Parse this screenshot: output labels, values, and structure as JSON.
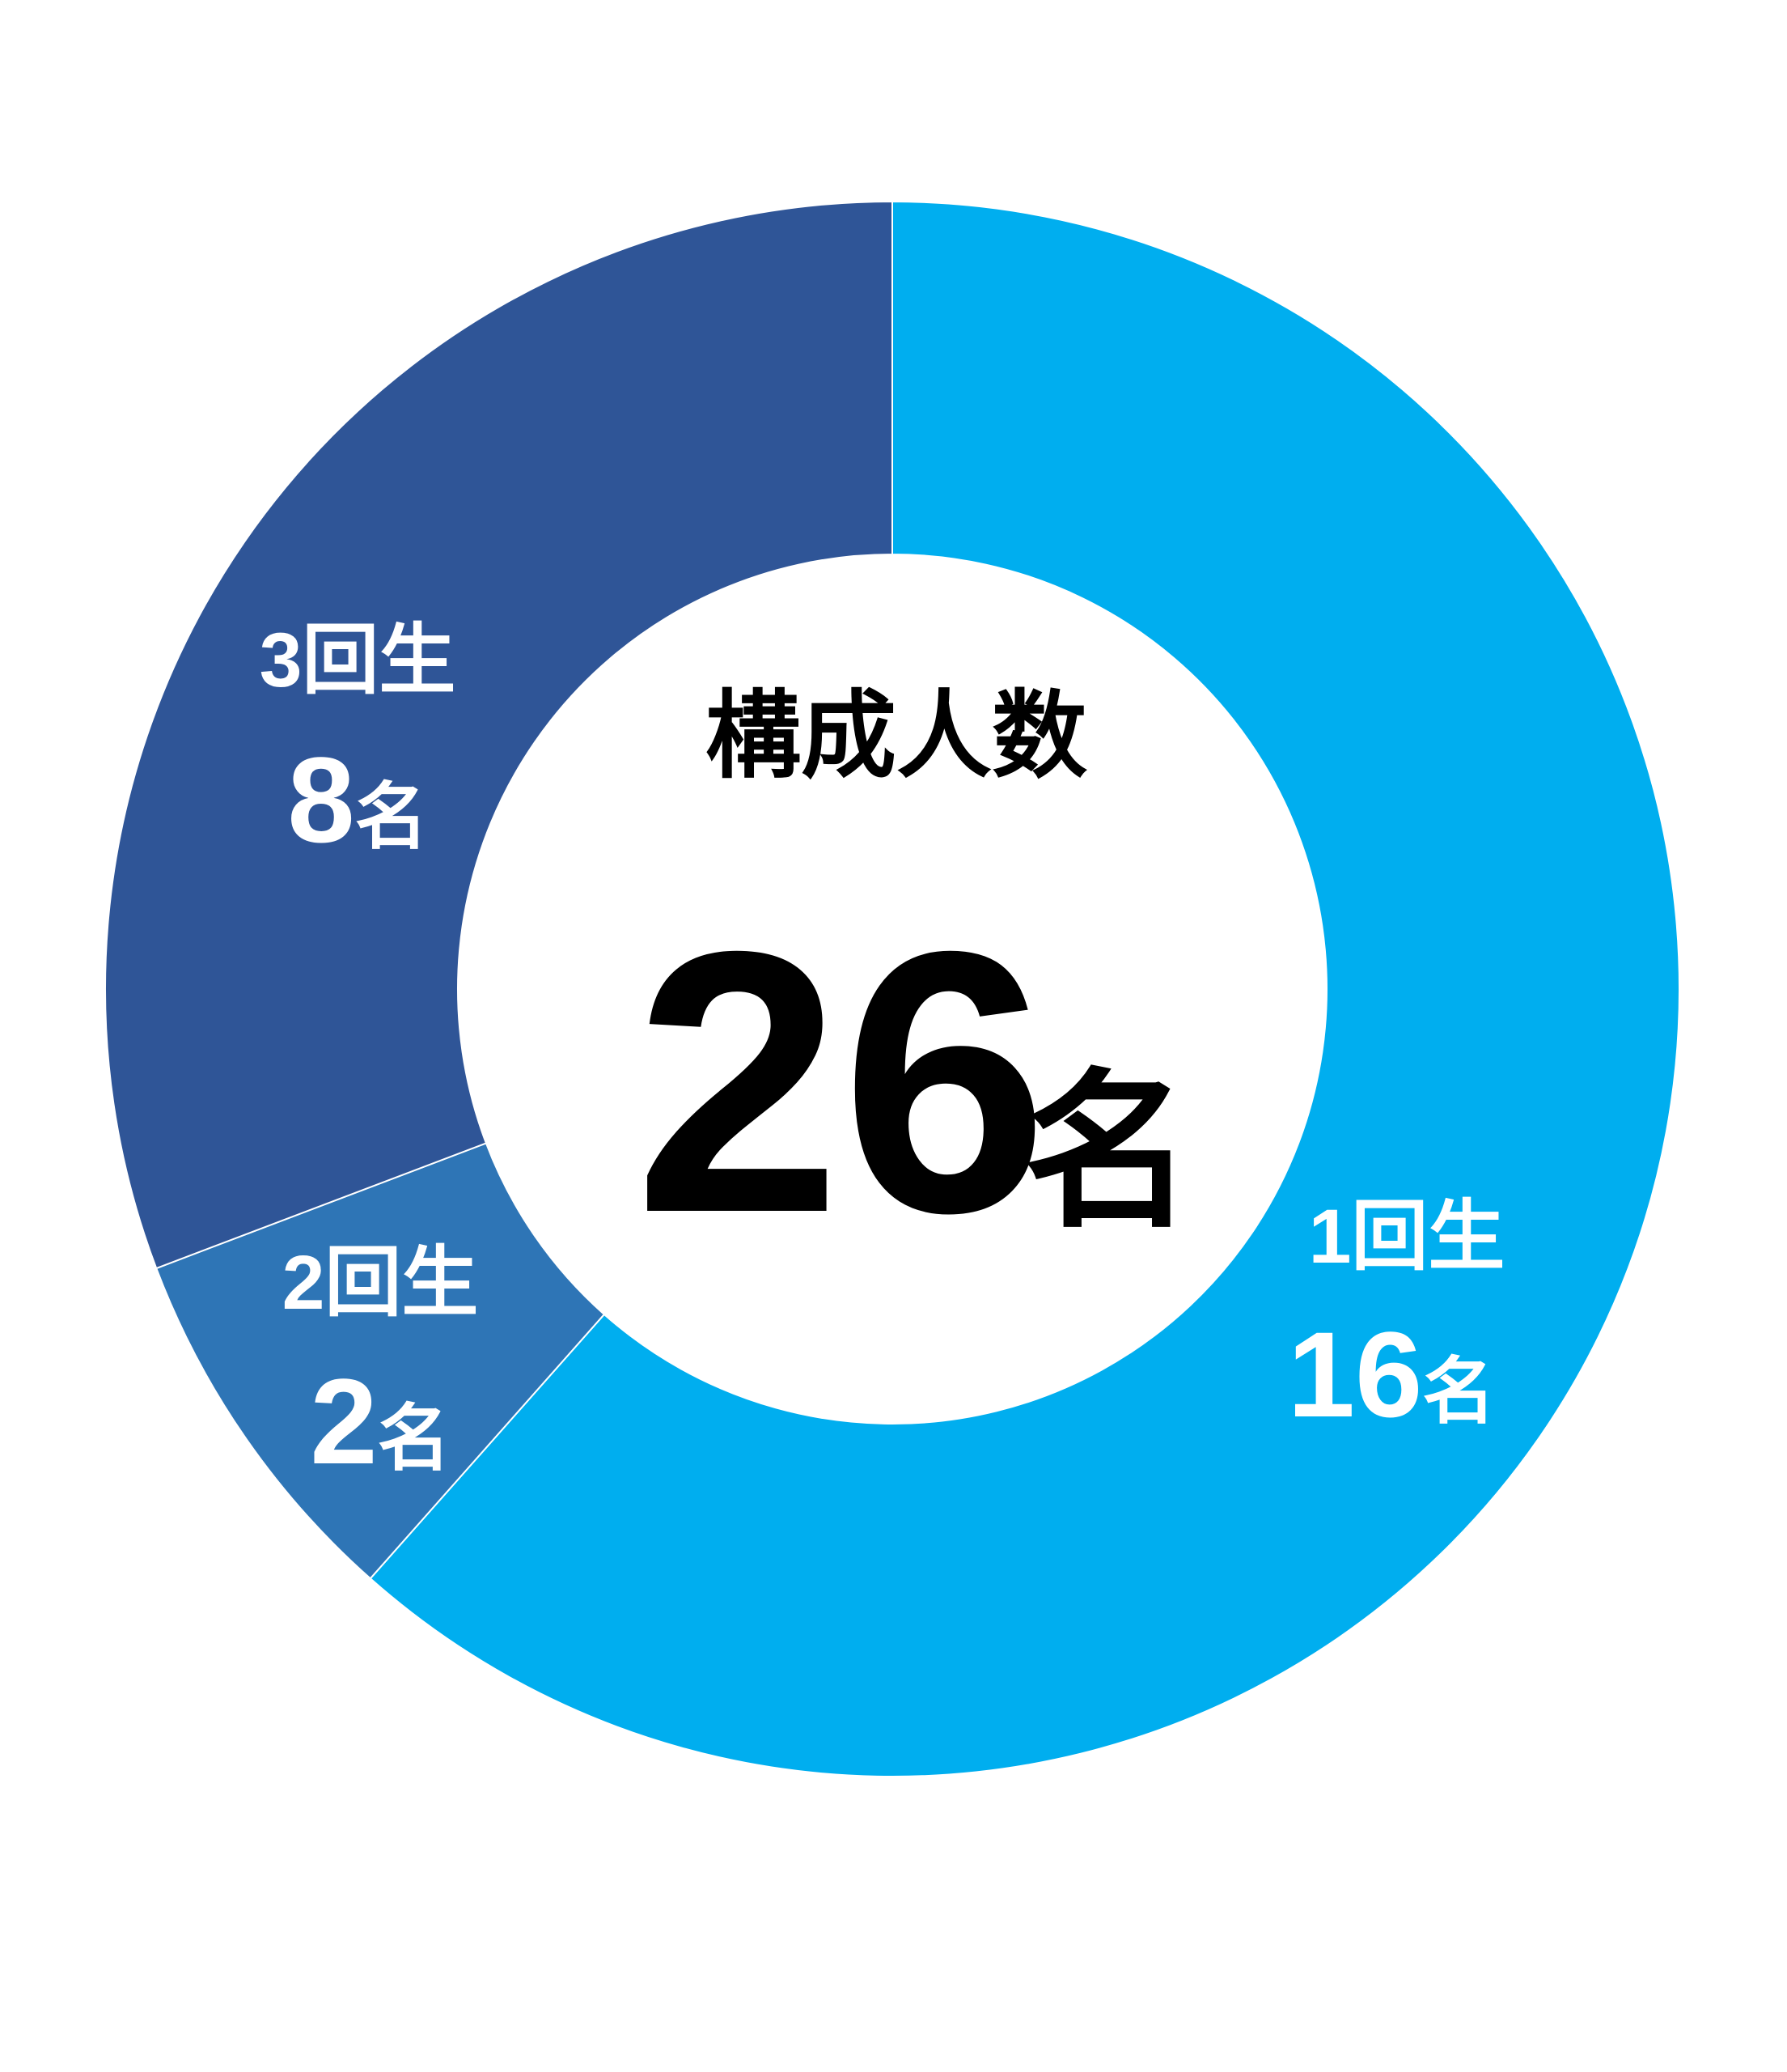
{
  "chart_data": {
    "type": "pie",
    "donut": true,
    "center_label": "構成人数",
    "total": "26",
    "unit": "名",
    "categories": [
      "1回生",
      "2回生",
      "3回生"
    ],
    "values": [
      16,
      2,
      8
    ],
    "colors": [
      "#00AEEF",
      "#2E75B6",
      "#2F5597"
    ],
    "start": "top",
    "direction": "clockwise"
  }
}
